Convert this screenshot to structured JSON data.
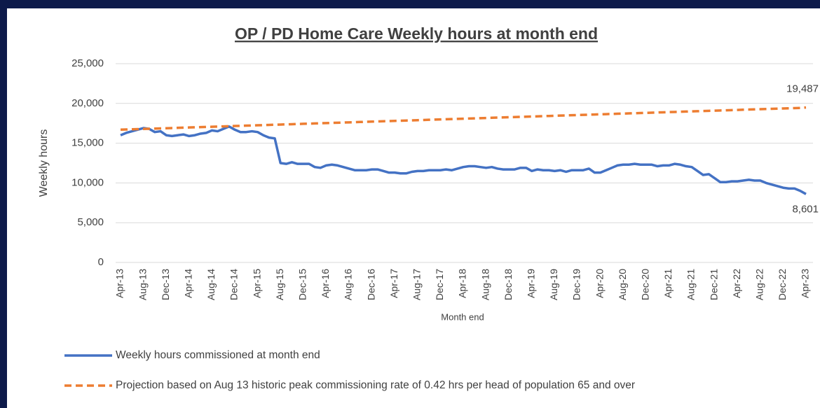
{
  "chart_data": {
    "type": "line",
    "title": "OP / PD Home Care Weekly hours at month end",
    "y_label": "Weekly hours",
    "x_label": "Month end",
    "categories": [
      "Apr-13",
      null,
      null,
      null,
      "Aug-13",
      null,
      null,
      null,
      "Dec-13",
      null,
      null,
      null,
      "Apr-14",
      null,
      null,
      null,
      "Aug-14",
      null,
      null,
      null,
      "Dec-14",
      null,
      null,
      null,
      "Apr-15",
      null,
      null,
      null,
      "Aug-15",
      null,
      null,
      null,
      "Dec-15",
      null,
      null,
      null,
      "Apr-16",
      null,
      null,
      null,
      "Aug-16",
      null,
      null,
      null,
      "Dec-16",
      null,
      null,
      null,
      "Apr-17",
      null,
      null,
      null,
      "Aug-17",
      null,
      null,
      null,
      "Dec-17",
      null,
      null,
      null,
      "Apr-18",
      null,
      null,
      null,
      "Aug-18",
      null,
      null,
      null,
      "Dec-18",
      null,
      null,
      null,
      "Apr-19",
      null,
      null,
      null,
      "Aug-19",
      null,
      null,
      null,
      "Dec-19",
      null,
      null,
      null,
      "Apr-20",
      null,
      null,
      null,
      "Aug-20",
      null,
      null,
      null,
      "Dec-20",
      null,
      null,
      null,
      "Apr-21",
      null,
      null,
      null,
      "Aug-21",
      null,
      null,
      null,
      "Dec-21",
      null,
      null,
      null,
      "Apr-22",
      null,
      null,
      null,
      "Aug-22",
      null,
      null,
      null,
      "Dec-22",
      null,
      null,
      null,
      "Apr-23"
    ],
    "series": [
      {
        "name": "Weekly hours commissioned at month end",
        "color": "#4472c4",
        "dashed": false,
        "values": [
          16000,
          16300,
          16500,
          16700,
          16900,
          16800,
          16400,
          16500,
          16000,
          15900,
          16000,
          16100,
          15900,
          16000,
          16200,
          16300,
          16600,
          16500,
          16800,
          17100,
          16700,
          16400,
          16400,
          16500,
          16400,
          16000,
          15700,
          15600,
          12500,
          12400,
          12600,
          12400,
          12400,
          12400,
          12000,
          11900,
          12200,
          12300,
          12200,
          12000,
          11800,
          11600,
          11600,
          11600,
          11700,
          11700,
          11500,
          11300,
          11300,
          11200,
          11200,
          11400,
          11500,
          11500,
          11600,
          11600,
          11600,
          11700,
          11600,
          11800,
          12000,
          12100,
          12100,
          12000,
          11900,
          12000,
          11800,
          11700,
          11700,
          11700,
          11900,
          11900,
          11500,
          11700,
          11600,
          11600,
          11500,
          11600,
          11400,
          11600,
          11600,
          11600,
          11800,
          11300,
          11300,
          11600,
          11900,
          12200,
          12300,
          12300,
          12400,
          12300,
          12300,
          12300,
          12100,
          12200,
          12200,
          12400,
          12300,
          12100,
          12000,
          11500,
          11000,
          11100,
          10600,
          10100,
          10100,
          10200,
          10200,
          10300,
          10400,
          10300,
          10300,
          10000,
          9800,
          9600,
          9400,
          9300,
          9300,
          9000,
          8601
        ],
        "value_labels": {
          "120": "8,601"
        }
      },
      {
        "name": "Projection based on Aug 13 historic peak commissioning rate of 0.42 hrs per head of population 65 and over",
        "color": "#ed7d31",
        "dashed": true,
        "values": [
          16700,
          16723,
          16746,
          16769,
          16792,
          16815,
          16838,
          16861,
          16884,
          16907,
          16930,
          16953,
          16976,
          16999,
          17022,
          17045,
          17068,
          17091,
          17114,
          17137,
          17160,
          17183,
          17206,
          17229,
          17252,
          17275,
          17298,
          17321,
          17344,
          17367,
          17390,
          17413,
          17436,
          17459,
          17482,
          17505,
          17528,
          17551,
          17574,
          17597,
          17620,
          17643,
          17666,
          17689,
          17712,
          17735,
          17758,
          17781,
          17804,
          17827,
          17850,
          17873,
          17896,
          17919,
          17942,
          17965,
          17988,
          18011,
          18034,
          18057,
          18080,
          18103,
          18126,
          18149,
          18172,
          18195,
          18218,
          18241,
          18264,
          18287,
          18310,
          18333,
          18356,
          18379,
          18402,
          18425,
          18448,
          18471,
          18494,
          18517,
          18540,
          18563,
          18586,
          18609,
          18632,
          18655,
          18678,
          18701,
          18724,
          18747,
          18770,
          18793,
          18816,
          18839,
          18862,
          18885,
          18908,
          18931,
          18954,
          18977,
          19000,
          19023,
          19046,
          19069,
          19092,
          19115,
          19138,
          19161,
          19184,
          19207,
          19230,
          19253,
          19276,
          19299,
          19322,
          19345,
          19368,
          19391,
          19414,
          19437,
          19487
        ],
        "value_labels": {
          "120": "19,487"
        }
      }
    ],
    "ylim": [
      0,
      25000
    ],
    "yticks": [
      0,
      {
        "value": 5000,
        "label": "5,000"
      },
      {
        "value": 10000,
        "label": "10,000"
      },
      {
        "value": 15000,
        "label": "15,000"
      },
      {
        "value": 20000,
        "label": "20,000"
      },
      {
        "value": 25000,
        "label": "25,000"
      }
    ],
    "grid": true,
    "legend": "bottom"
  }
}
